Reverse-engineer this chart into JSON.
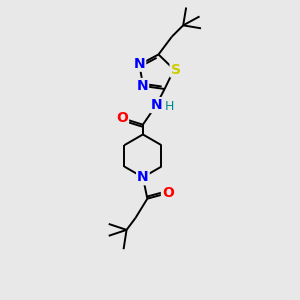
{
  "background_color": "#e8e8e8",
  "atoms": {
    "S": {
      "color": "#cccc00",
      "fontsize": 10,
      "fontweight": "bold"
    },
    "N": {
      "color": "#0000ff",
      "fontsize": 10,
      "fontweight": "bold"
    },
    "O": {
      "color": "#ff0000",
      "fontsize": 10,
      "fontweight": "bold"
    },
    "H": {
      "color": "#008888",
      "fontsize": 9,
      "fontweight": "normal"
    }
  },
  "line_width": 1.4,
  "figsize": [
    3.0,
    3.0
  ],
  "dpi": 100
}
